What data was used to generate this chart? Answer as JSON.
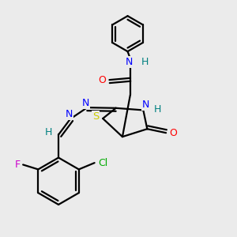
{
  "background_color": "#ebebeb",
  "atom_colors": {
    "C": "#000000",
    "H": "#008080",
    "N": "#0000ff",
    "O": "#ff0000",
    "S": "#cccc00",
    "F": "#cc00cc",
    "Cl": "#00aa00"
  },
  "bond_color": "#000000",
  "bond_width": 1.6,
  "figsize": [
    3.0,
    3.0
  ],
  "dpi": 100
}
